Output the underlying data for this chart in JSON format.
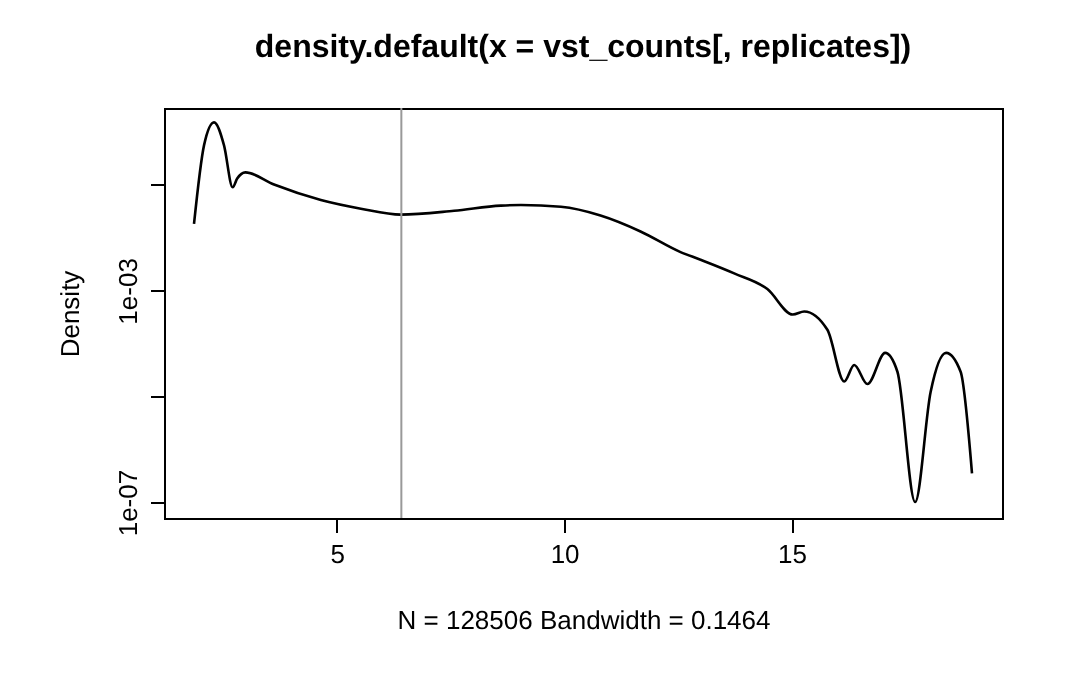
{
  "chart_data": {
    "type": "line",
    "title": "density.default(x = vst_counts[, replicates])",
    "xlabel": "N = 128506   Bandwidth = 0.1464",
    "ylabel": "Density",
    "log": "y",
    "grid": false,
    "marker": "none",
    "line_style": "solid",
    "xlim": [
      1.2,
      19.63
    ],
    "xticks": [
      5,
      10,
      15
    ],
    "ylim": [
      5e-08,
      2.8
    ],
    "yticks": [
      {
        "value": 0.1,
        "label": null
      },
      {
        "value": 0.001,
        "label": "1e-03"
      },
      {
        "value": 1e-05,
        "label": null
      },
      {
        "value": 1e-07,
        "label": "1e-07"
      }
    ],
    "x": [
      1.86,
      2.08,
      2.3,
      2.52,
      2.71,
      2.81,
      2.99,
      3.62,
      4.65,
      5.53,
      6.41,
      7.58,
      8.61,
      9.05,
      9.93,
      10.8,
      11.68,
      12.56,
      13.0,
      13.74,
      14.47,
      15.03,
      15.28,
      15.79,
      16.16,
      16.38,
      16.67,
      17.06,
      17.33,
      17.72,
      18.06,
      18.4,
      18.72,
      18.97
    ],
    "series": [
      {
        "color": "#000000",
        "values": [
          0.018,
          0.55,
          1.5,
          0.55,
          0.089,
          0.13,
          0.17,
          0.1,
          0.051,
          0.035,
          0.027,
          0.032,
          0.04,
          0.041,
          0.038,
          0.026,
          0.013,
          0.0053,
          0.0038,
          0.0021,
          0.00106,
          0.00035,
          0.0004,
          0.00018,
          1.9e-05,
          3.9e-05,
          1.7e-05,
          6.6e-05,
          2.9e-05,
          1e-07,
          1.2e-05,
          6.6e-05,
          2.9e-05,
          3.5e-07
        ]
      }
    ],
    "ref_lines": [
      {
        "axis": "x",
        "value": 6.42,
        "color": "#999999"
      }
    ]
  }
}
